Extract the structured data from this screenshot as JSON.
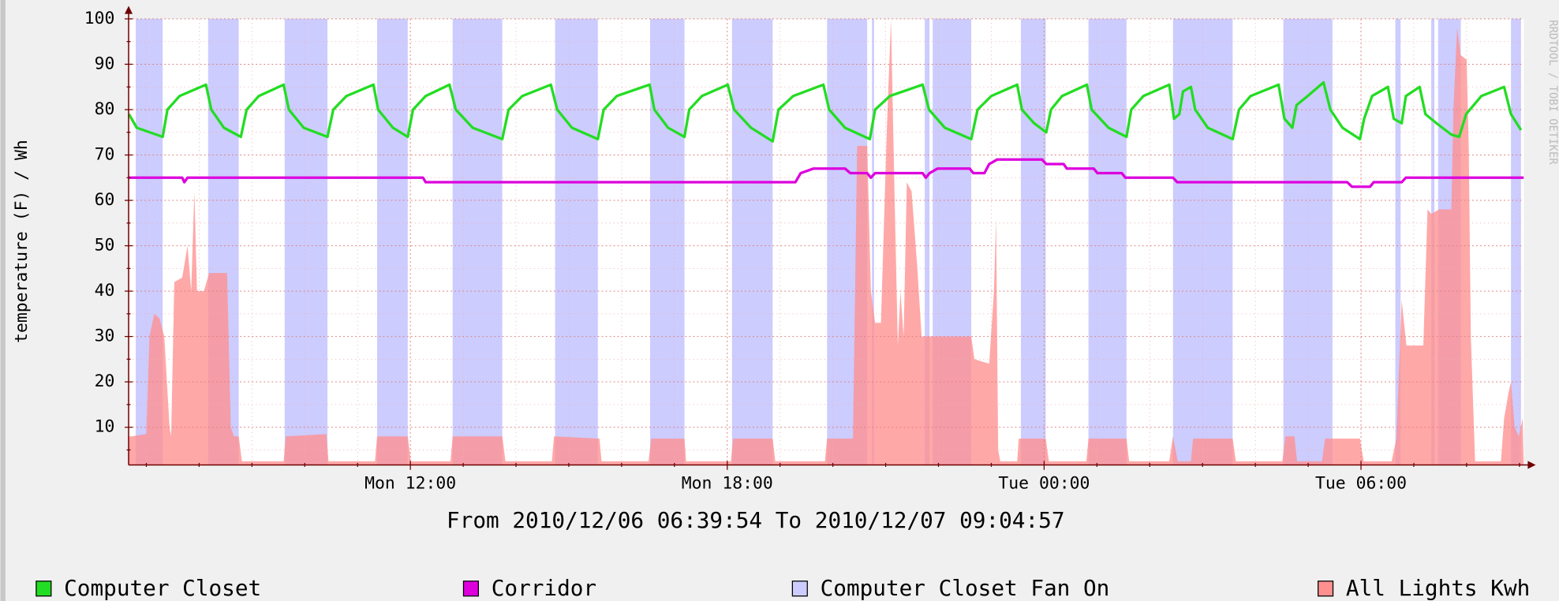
{
  "chart_data": {
    "type": "line",
    "y_label": "temperature (F) / Wh",
    "footer": "From 2010/12/06 06:39:54 To 2010/12/07 09:04:57",
    "watermark": "RRDTOOL / TOBI OETIKER",
    "xlim": [
      6.665,
      33.0825
    ],
    "xticks": [
      {
        "value": 12,
        "label": "Mon 12:00"
      },
      {
        "value": 18,
        "label": "Mon 18:00"
      },
      {
        "value": 24,
        "label": "Tue 00:00"
      },
      {
        "value": 30,
        "label": "Tue 06:00"
      }
    ],
    "xminorticks": [
      7,
      8,
      9,
      10,
      11,
      13,
      14,
      15,
      16,
      17,
      19,
      20,
      21,
      22,
      23,
      25,
      26,
      27,
      28,
      29,
      31,
      32,
      33
    ],
    "ylim": [
      1.7,
      100
    ],
    "yticks": [
      10,
      20,
      30,
      40,
      50,
      60,
      70,
      80,
      90,
      100
    ],
    "yminorticks": [
      5,
      15,
      25,
      35,
      45,
      55,
      65,
      75,
      85,
      95
    ],
    "grid": true,
    "series": [
      {
        "name": "Computer Closet",
        "color": "#22dd22",
        "type": "line",
        "x": [
          6.67,
          6.82,
          7.31,
          7.4,
          7.63,
          8.13,
          8.23,
          8.47,
          8.79,
          8.9,
          9.13,
          9.6,
          9.7,
          9.98,
          10.43,
          10.54,
          10.79,
          11.3,
          11.39,
          11.67,
          11.95,
          12.05,
          12.29,
          12.74,
          12.86,
          13.18,
          13.74,
          13.86,
          14.12,
          14.66,
          14.78,
          15.06,
          15.55,
          15.66,
          15.91,
          16.53,
          16.62,
          16.88,
          17.19,
          17.28,
          17.52,
          18.01,
          18.13,
          18.45,
          18.86,
          18.97,
          19.25,
          19.82,
          19.93,
          20.23,
          20.7,
          20.8,
          21.08,
          21.7,
          21.82,
          22.12,
          22.62,
          22.74,
          23.0,
          23.49,
          23.58,
          23.81,
          24.04,
          24.13,
          24.34,
          24.81,
          24.9,
          25.22,
          25.56,
          25.65,
          25.88,
          26.37,
          26.46,
          26.56,
          26.63,
          26.78,
          26.86,
          27.1,
          27.57,
          27.69,
          27.91,
          28.44,
          28.55,
          28.7,
          28.78,
          28.99,
          29.29,
          29.42,
          29.65,
          29.98,
          30.06,
          30.21,
          30.51,
          30.62,
          30.77,
          30.85,
          31.11,
          31.22,
          31.43,
          31.71,
          31.86,
          31.99,
          32.28,
          32.71,
          32.84,
          33.03
        ],
        "values": [
          79,
          76,
          74,
          80,
          83,
          85.5,
          80,
          76,
          74,
          80,
          83,
          85.5,
          80,
          76,
          74,
          80,
          83,
          85.5,
          80,
          76,
          74,
          80,
          83,
          85.5,
          80,
          76,
          73.5,
          80,
          83,
          85.5,
          80,
          76,
          73.5,
          80,
          83,
          85.5,
          80,
          76,
          74,
          80,
          83,
          85.5,
          80,
          76,
          73,
          80,
          83,
          85.5,
          80,
          76,
          73.5,
          80,
          83,
          85.5,
          80,
          76,
          73.5,
          80,
          83,
          85.5,
          80,
          77,
          75,
          80,
          83,
          85.5,
          80,
          76,
          74,
          80,
          83,
          85.5,
          78,
          79,
          84,
          85,
          80,
          76,
          73.5,
          80,
          83,
          85.5,
          78,
          76,
          81,
          83,
          86,
          80,
          76,
          73.5,
          78,
          83,
          85,
          78,
          77,
          83,
          85,
          79,
          77,
          74.5,
          74,
          79,
          83,
          85,
          79,
          75.5
        ]
      },
      {
        "name": "Corridor",
        "color": "#dd00dd",
        "type": "line",
        "x": [
          6.67,
          7.68,
          7.72,
          7.78,
          12.24,
          12.29,
          19.29,
          19.39,
          19.63,
          20.23,
          20.33,
          20.65,
          20.72,
          20.8,
          21.7,
          21.76,
          21.83,
          21.98,
          22.59,
          22.66,
          22.87,
          22.96,
          23.11,
          23.96,
          24.04,
          24.37,
          24.43,
          24.94,
          25.01,
          25.47,
          25.54,
          26.44,
          26.52,
          29.74,
          29.83,
          30.17,
          30.24,
          30.77,
          30.85,
          33.08
        ],
        "values": [
          65,
          65,
          64,
          65,
          65,
          64,
          64,
          66,
          67,
          67,
          66,
          66,
          65,
          66,
          66,
          65,
          66,
          67,
          67,
          66,
          66,
          68,
          69,
          69,
          68,
          68,
          67,
          67,
          66,
          66,
          65,
          65,
          64,
          64,
          63,
          63,
          64,
          64,
          65,
          65
        ]
      },
      {
        "name": "Computer Closet Fan On",
        "color": "#ccccff",
        "type": "band",
        "intervals": [
          [
            6.8,
            7.31
          ],
          [
            8.17,
            8.75
          ],
          [
            9.62,
            10.43
          ],
          [
            11.37,
            11.95
          ],
          [
            12.8,
            13.74
          ],
          [
            14.74,
            15.55
          ],
          [
            16.54,
            17.19
          ],
          [
            18.09,
            18.86
          ],
          [
            19.89,
            20.65
          ],
          [
            20.74,
            20.78
          ],
          [
            21.74,
            21.83
          ],
          [
            21.89,
            22.62
          ],
          [
            23.56,
            24.03
          ],
          [
            24.84,
            25.56
          ],
          [
            26.44,
            27.57
          ],
          [
            28.53,
            29.46
          ],
          [
            30.65,
            30.75
          ],
          [
            31.33,
            31.39
          ],
          [
            31.46,
            31.89
          ],
          [
            32.84,
            33.03
          ]
        ]
      },
      {
        "name": "All Lights Kwh",
        "color": "#ff9090",
        "type": "area",
        "x": [
          6.67,
          6.72,
          7.0,
          7.06,
          7.15,
          7.25,
          7.34,
          7.44,
          7.47,
          7.53,
          7.68,
          7.78,
          7.85,
          7.91,
          7.96,
          8.09,
          8.19,
          8.53,
          8.6,
          8.66,
          8.75,
          8.81,
          9.6,
          9.64,
          10.41,
          10.45,
          11.33,
          11.37,
          11.95,
          12.01,
          12.76,
          12.8,
          13.74,
          13.8,
          14.68,
          14.72,
          15.58,
          15.62,
          16.51,
          16.56,
          17.19,
          17.22,
          18.07,
          18.11,
          18.86,
          18.91,
          19.85,
          19.89,
          20.38,
          20.46,
          20.65,
          20.72,
          20.8,
          20.91,
          21.02,
          21.1,
          21.17,
          21.23,
          21.28,
          21.34,
          21.4,
          21.49,
          21.6,
          21.68,
          21.74,
          21.87,
          22.62,
          22.68,
          22.96,
          23.05,
          23.09,
          23.13,
          23.17,
          23.49,
          23.52,
          24.03,
          24.09,
          24.8,
          24.84,
          25.56,
          25.61,
          26.37,
          26.44,
          26.53,
          26.78,
          26.82,
          27.57,
          27.63,
          28.51,
          28.57,
          28.74,
          28.79,
          29.26,
          29.32,
          29.98,
          30.05,
          30.58,
          30.67,
          30.77,
          30.86,
          31.18,
          31.26,
          31.33,
          31.48,
          31.71,
          31.75,
          31.82,
          31.89,
          32.0,
          32.04,
          32.08,
          32.16,
          32.65,
          32.71,
          32.8,
          32.84,
          32.91,
          32.99,
          33.06,
          33.08
        ],
        "values": [
          8,
          8,
          8.5,
          30,
          35,
          34,
          30,
          10,
          8,
          42,
          43,
          50,
          40,
          62,
          40,
          40,
          44,
          44,
          10,
          8,
          8,
          2.5,
          2.5,
          8,
          8.5,
          2.5,
          2.5,
          8,
          8,
          2.5,
          2.5,
          8,
          8,
          2.5,
          2.5,
          8,
          7.5,
          2.5,
          2.5,
          7.5,
          7.5,
          2.5,
          2.5,
          7.5,
          7.5,
          2.5,
          2.5,
          7.5,
          7.5,
          72,
          72,
          40,
          33,
          33,
          75,
          100,
          60,
          28,
          40,
          30,
          64,
          62,
          45,
          30,
          30,
          30,
          30,
          25,
          24,
          40,
          56,
          5,
          2.5,
          2.5,
          7.5,
          7.5,
          2.5,
          2.5,
          7.5,
          7.5,
          2.5,
          2.5,
          8,
          2.5,
          2.5,
          7.5,
          7.5,
          2.5,
          2.5,
          8,
          8,
          2.5,
          2.5,
          7.5,
          7.5,
          2.5,
          2.5,
          7.5,
          38,
          28,
          28,
          58,
          57,
          58,
          58,
          80,
          98,
          92,
          91,
          72,
          30,
          2.5,
          2.5,
          12,
          18,
          20,
          10,
          8,
          12,
          2
        ]
      }
    ]
  }
}
